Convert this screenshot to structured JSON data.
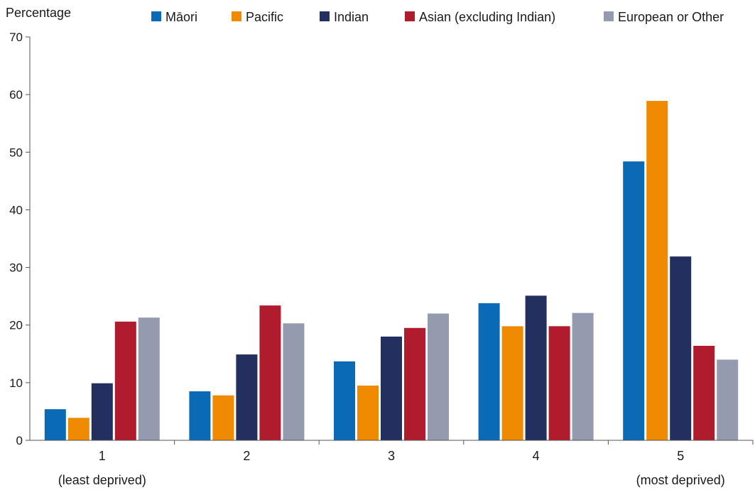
{
  "chart_data": {
    "type": "bar",
    "ylabel": "Percentage",
    "ylim": [
      0,
      70
    ],
    "yticks": [
      0,
      10,
      20,
      30,
      40,
      50,
      60,
      70
    ],
    "grid": false,
    "legend_position": "top",
    "categories": [
      {
        "main": "1",
        "sub": "(least deprived)"
      },
      {
        "main": "2",
        "sub": ""
      },
      {
        "main": "3",
        "sub": ""
      },
      {
        "main": "4",
        "sub": ""
      },
      {
        "main": "5",
        "sub": "(most deprived)"
      }
    ],
    "series": [
      {
        "name": "Māori",
        "color": "#0a6ab5",
        "values": [
          5.4,
          8.5,
          13.7,
          23.8,
          48.4
        ]
      },
      {
        "name": "Pacific",
        "color": "#f08a00",
        "values": [
          3.9,
          7.8,
          9.5,
          19.8,
          58.9
        ]
      },
      {
        "name": "Indian",
        "color": "#232f5f",
        "values": [
          9.9,
          14.9,
          18.0,
          25.1,
          31.9
        ]
      },
      {
        "name": "Asian (excluding Indian)",
        "color": "#b01c2e",
        "values": [
          20.6,
          23.4,
          19.5,
          19.8,
          16.4
        ]
      },
      {
        "name": "European or Other",
        "color": "#959bae",
        "values": [
          21.3,
          20.3,
          22.0,
          22.1,
          14.0
        ]
      }
    ]
  }
}
